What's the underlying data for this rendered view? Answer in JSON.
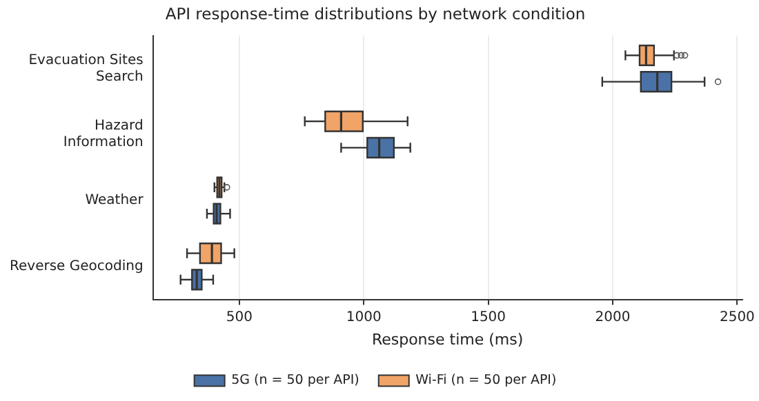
{
  "chart_data": {
    "type": "box",
    "title": "API response-time distributions by network condition",
    "xlabel": "Response time (ms)",
    "orientation": "horizontal",
    "categories": [
      "Evacuation Sites Search",
      "Hazard Information",
      "Weather",
      "Reverse Geocoding"
    ],
    "xlim": [
      153,
      2520
    ],
    "xticks": [
      500,
      1000,
      1500,
      2000,
      2500
    ],
    "grid": "x",
    "legend": "bottom",
    "series": [
      {
        "name": "5G (n = 50 per API)",
        "color": "#4a72a6",
        "boxes": [
          {
            "low": 1958,
            "q1": 2113,
            "median": 2179,
            "q3": 2236,
            "high": 2369,
            "outliers": [
              2423
            ]
          },
          {
            "low": 909,
            "q1": 1014,
            "median": 1062,
            "q3": 1121,
            "high": 1187
          },
          {
            "low": 370,
            "q1": 397,
            "median": 409,
            "q3": 424,
            "high": 463
          },
          {
            "low": 264,
            "q1": 310,
            "median": 329,
            "q3": 349,
            "high": 395
          }
        ]
      },
      {
        "name": "Wi-Fi (n = 50 per API)",
        "color": "#f0a468",
        "boxes": [
          {
            "low": 2051,
            "q1": 2108,
            "median": 2134,
            "q3": 2166,
            "high": 2246,
            "outliers": [
              2258,
              2275,
              2290
            ]
          },
          {
            "low": 763,
            "q1": 845,
            "median": 909,
            "q3": 996,
            "high": 1176
          },
          {
            "low": 400,
            "q1": 411,
            "median": 420,
            "q3": 429,
            "high": 440,
            "outliers": [
              450
            ]
          },
          {
            "low": 290,
            "q1": 342,
            "median": 390,
            "q3": 427,
            "high": 480
          }
        ]
      }
    ]
  }
}
